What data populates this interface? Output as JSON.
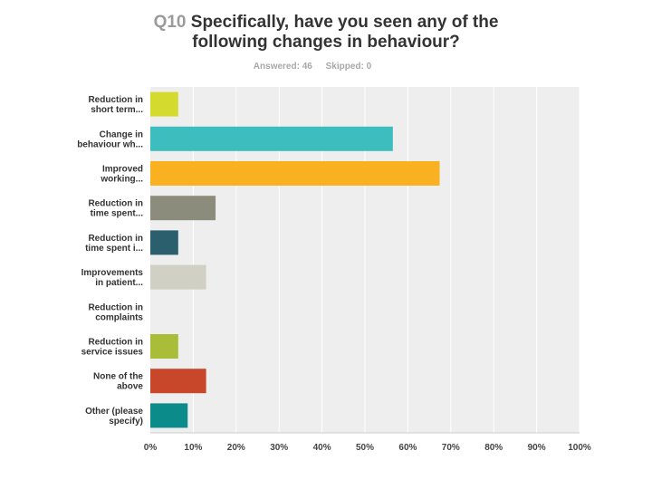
{
  "header": {
    "question_number": "Q10",
    "title_line1": "Specifically, have you seen any of the",
    "title_line2": "following changes in behaviour?",
    "answered": "Answered: 46",
    "skipped": "Skipped: 0"
  },
  "colors": {
    "plot_background": "#eeeeee",
    "gridline": "#ffffff",
    "axis": "#cccccc"
  },
  "chart_data": {
    "type": "bar",
    "orientation": "horizontal",
    "categories": [
      [
        "Reduction in",
        "short term..."
      ],
      [
        "Change in",
        "behaviour wh..."
      ],
      [
        "Improved",
        "working..."
      ],
      [
        "Reduction in",
        "time spent..."
      ],
      [
        "Reduction in",
        "time spent i..."
      ],
      [
        "Improvements",
        "in patient..."
      ],
      [
        "Reduction in",
        "complaints"
      ],
      [
        "Reduction in",
        "service issues"
      ],
      [
        "None of the",
        "above"
      ],
      [
        "Other (please",
        "specify)"
      ]
    ],
    "values": [
      6.5,
      56.5,
      67.4,
      15.2,
      6.5,
      13.0,
      0,
      6.5,
      13.0,
      8.7
    ],
    "bar_colors": [
      "#d5da2e",
      "#3ebdbf",
      "#f9b021",
      "#8c8c7c",
      "#2c5f6e",
      "#d0d0c4",
      "#b0b0b0",
      "#a9bd38",
      "#c8462a",
      "#0b8c8a"
    ],
    "xlim": [
      0,
      100
    ],
    "xticks": [
      "0%",
      "10%",
      "20%",
      "30%",
      "40%",
      "50%",
      "60%",
      "70%",
      "80%",
      "90%",
      "100%"
    ],
    "grid": true
  }
}
